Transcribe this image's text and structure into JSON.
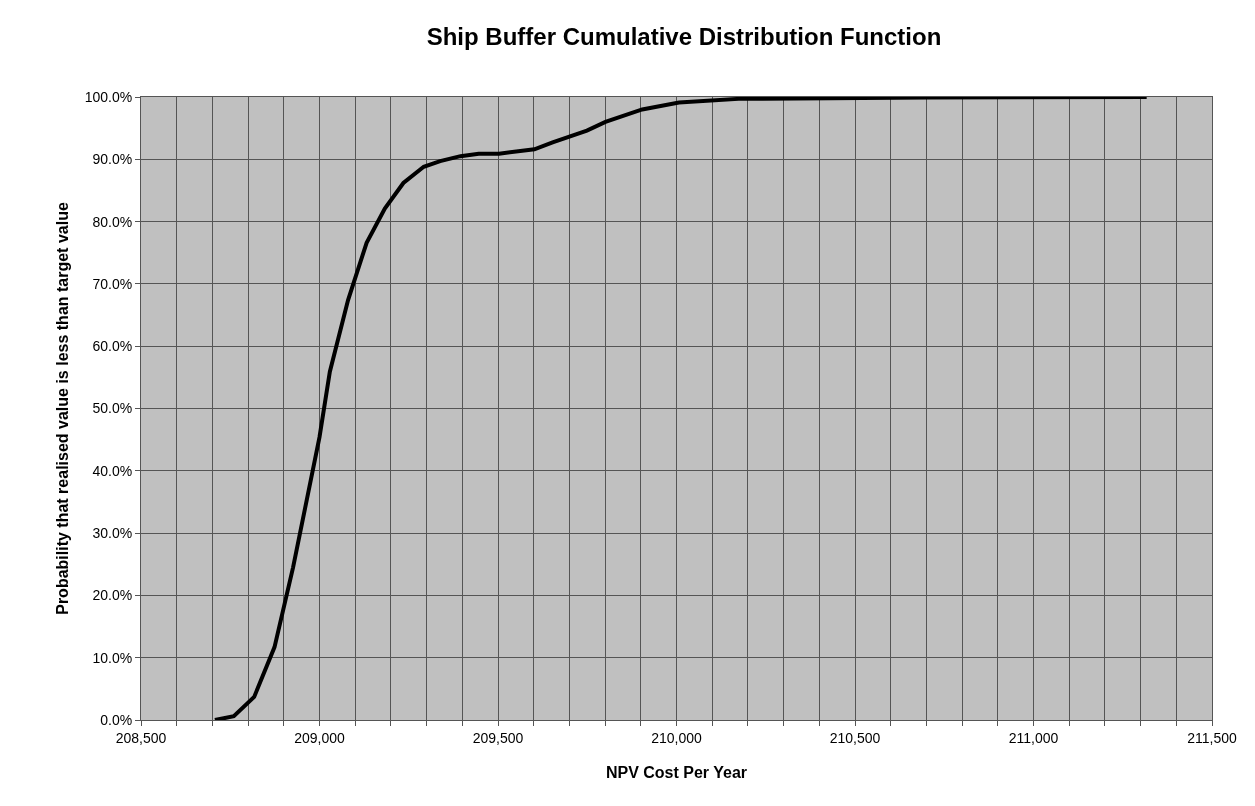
{
  "chart_data": {
    "type": "line",
    "title": "Ship Buffer Cumulative Distribution Function",
    "xlabel": "NPV Cost Per Year",
    "ylabel": "Probability that realised value is less than target value",
    "x": [
      208707,
      208760,
      208817,
      208874,
      208926,
      209000,
      209029,
      209080,
      209132,
      209183,
      209235,
      209292,
      209338,
      209395,
      209446,
      209503,
      209602,
      209653,
      209749,
      209801,
      209904,
      210007,
      210174,
      210430,
      210700,
      211317
    ],
    "series": [
      {
        "color": "#000000",
        "values": [
          0,
          0.6,
          3.7,
          11.7,
          24.5,
          45.4,
          55.9,
          67.4,
          76.6,
          82.1,
          86.2,
          88.8,
          89.7,
          90.5,
          90.9,
          90.9,
          91.6,
          92.7,
          94.6,
          96.0,
          98.0,
          99.1,
          99.7,
          99.8,
          99.9,
          100
        ]
      }
    ],
    "xlim": [
      208500,
      211500
    ],
    "xticks": [
      {
        "value": 208500,
        "label": "208,500"
      },
      {
        "value": 208600,
        "label": null
      },
      {
        "value": 208700,
        "label": null
      },
      {
        "value": 208800,
        "label": null
      },
      {
        "value": 208900,
        "label": null
      },
      {
        "value": 209000,
        "label": "209,000"
      },
      {
        "value": 209100,
        "label": null
      },
      {
        "value": 209200,
        "label": null
      },
      {
        "value": 209300,
        "label": null
      },
      {
        "value": 209400,
        "label": null
      },
      {
        "value": 209500,
        "label": "209,500"
      },
      {
        "value": 209600,
        "label": null
      },
      {
        "value": 209700,
        "label": null
      },
      {
        "value": 209800,
        "label": null
      },
      {
        "value": 209900,
        "label": null
      },
      {
        "value": 210000,
        "label": "210,000"
      },
      {
        "value": 210100,
        "label": null
      },
      {
        "value": 210200,
        "label": null
      },
      {
        "value": 210300,
        "label": null
      },
      {
        "value": 210400,
        "label": null
      },
      {
        "value": 210500,
        "label": "210,500"
      },
      {
        "value": 210600,
        "label": null
      },
      {
        "value": 210700,
        "label": null
      },
      {
        "value": 210800,
        "label": null
      },
      {
        "value": 210900,
        "label": null
      },
      {
        "value": 211000,
        "label": "211,000"
      },
      {
        "value": 211100,
        "label": null
      },
      {
        "value": 211200,
        "label": null
      },
      {
        "value": 211300,
        "label": null
      },
      {
        "value": 211400,
        "label": null
      },
      {
        "value": 211500,
        "label": "211,500"
      }
    ],
    "ylim": [
      0,
      100
    ],
    "yticks": [
      {
        "value": 0,
        "label": "0.0%"
      },
      {
        "value": 10,
        "label": "10.0%"
      },
      {
        "value": 20,
        "label": "20.0%"
      },
      {
        "value": 30,
        "label": "30.0%"
      },
      {
        "value": 40,
        "label": "40.0%"
      },
      {
        "value": 50,
        "label": "50.0%"
      },
      {
        "value": 60,
        "label": "60.0%"
      },
      {
        "value": 70,
        "label": "70.0%"
      },
      {
        "value": 80,
        "label": "80.0%"
      },
      {
        "value": 90,
        "label": "90.0%"
      },
      {
        "value": 100,
        "label": "100.0%"
      }
    ],
    "grid": true,
    "marker": "none",
    "line_style": "solid"
  }
}
